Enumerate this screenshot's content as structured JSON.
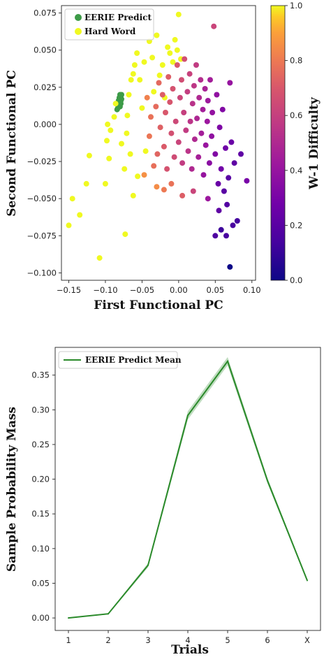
{
  "chart_data": [
    {
      "type": "scatter",
      "xlabel": "First Functional PC",
      "ylabel": "Second Functional PC",
      "xlim": [
        -0.16,
        0.105
      ],
      "ylim": [
        -0.105,
        0.08
      ],
      "xticks": [
        -0.15,
        -0.1,
        -0.05,
        0.0,
        0.05,
        0.1
      ],
      "xtick_labels": [
        "−0.15",
        "−0.10",
        "−0.05",
        "0.00",
        "0.05",
        "0.10"
      ],
      "yticks": [
        0.075,
        0.05,
        0.025,
        0.0,
        -0.025,
        -0.05,
        -0.075,
        -0.1
      ],
      "ytick_labels": [
        "0.075",
        "0.050",
        "0.025",
        "0.000",
        "−0.025",
        "−0.050",
        "−0.075",
        "−0.100"
      ],
      "legend": {
        "placement": "top-left",
        "entries": [
          "EERIE Predict",
          "Hard Word"
        ]
      },
      "colorbar": {
        "label": "W-1 Difficulty",
        "colormap": "plasma",
        "range": [
          0.0,
          1.0
        ],
        "ticks": [
          "0.0",
          "0.2",
          "0.4",
          "0.6",
          "0.8",
          "1.0"
        ]
      },
      "series": [
        {
          "name": "EERIE Predict",
          "color": "#3d9b48",
          "points": [
            [
              -0.083,
              0.011
            ],
            [
              -0.082,
              0.013
            ],
            [
              -0.081,
              0.015
            ],
            [
              -0.08,
              0.017
            ],
            [
              -0.079,
              0.019
            ],
            [
              -0.078,
              0.02
            ],
            [
              -0.084,
              0.01
            ],
            [
              -0.082,
              0.016
            ],
            [
              -0.08,
              0.012
            ],
            [
              -0.079,
              0.014
            ],
            [
              -0.078,
              0.017
            ],
            [
              -0.081,
              0.018
            ],
            [
              -0.083,
              0.014
            ],
            [
              -0.08,
              0.02
            ],
            [
              -0.079,
              0.016
            ]
          ]
        },
        {
          "name": "Hard Word",
          "color": "#f0f921",
          "points": [
            [
              -0.15,
              -0.068
            ],
            [
              -0.145,
              -0.05
            ],
            [
              -0.135,
              -0.061
            ],
            [
              -0.126,
              -0.04
            ],
            [
              -0.122,
              -0.021
            ],
            [
              -0.108,
              -0.09
            ],
            [
              -0.1,
              -0.04
            ],
            [
              -0.098,
              -0.011
            ],
            [
              -0.097,
              0.0
            ],
            [
              -0.095,
              -0.023
            ],
            [
              -0.093,
              -0.004
            ],
            [
              -0.088,
              0.005
            ],
            [
              -0.086,
              0.014
            ],
            [
              -0.078,
              -0.013
            ],
            [
              -0.074,
              -0.03
            ],
            [
              -0.073,
              -0.074
            ],
            [
              -0.071,
              -0.006
            ],
            [
              -0.07,
              0.006
            ],
            [
              -0.068,
              0.02
            ],
            [
              -0.065,
              0.03
            ],
            [
              -0.062,
              0.034
            ],
            [
              -0.06,
              0.04
            ],
            [
              -0.057,
              0.048
            ],
            [
              -0.053,
              0.03
            ],
            [
              -0.05,
              0.011
            ],
            [
              -0.047,
              0.042
            ],
            [
              -0.045,
              -0.018
            ],
            [
              -0.04,
              0.056
            ],
            [
              -0.036,
              0.045
            ],
            [
              -0.034,
              0.022
            ],
            [
              -0.03,
              0.06
            ],
            [
              -0.026,
              0.033
            ],
            [
              -0.022,
              0.04
            ],
            [
              -0.019,
              0.018
            ],
            [
              -0.015,
              0.052
            ],
            [
              -0.012,
              0.048
            ],
            [
              -0.008,
              0.042
            ],
            [
              -0.005,
              0.057
            ],
            [
              -0.002,
              0.05
            ],
            [
              0.0,
              0.074
            ],
            [
              0.003,
              0.044
            ],
            [
              -0.066,
              -0.02
            ],
            [
              -0.062,
              -0.048
            ],
            [
              -0.056,
              -0.035
            ]
          ]
        },
        {
          "name": "",
          "points": [
            [
              -0.047,
              -0.034,
              0.86
            ],
            [
              -0.043,
              0.018,
              0.82
            ],
            [
              -0.04,
              -0.008,
              0.79
            ],
            [
              -0.038,
              0.005,
              0.78
            ],
            [
              -0.034,
              -0.028,
              0.77
            ],
            [
              -0.031,
              0.012,
              0.76
            ],
            [
              -0.029,
              -0.02,
              0.74
            ],
            [
              -0.027,
              0.028,
              0.75
            ],
            [
              -0.025,
              -0.002,
              0.73
            ],
            [
              -0.022,
              0.02,
              0.72
            ],
            [
              -0.02,
              -0.015,
              0.71
            ],
            [
              -0.018,
              0.008,
              0.7
            ],
            [
              -0.016,
              -0.03,
              0.68
            ],
            [
              -0.014,
              0.032,
              0.72
            ],
            [
              -0.012,
              0.015,
              0.69
            ],
            [
              -0.01,
              -0.006,
              0.67
            ],
            [
              -0.008,
              0.024,
              0.68
            ],
            [
              -0.006,
              -0.022,
              0.65
            ],
            [
              -0.004,
              0.002,
              0.64
            ],
            [
              -0.002,
              0.04,
              0.7
            ],
            [
              0.0,
              -0.012,
              0.62
            ],
            [
              0.002,
              0.018,
              0.63
            ],
            [
              0.004,
              0.03,
              0.66
            ],
            [
              0.005,
              -0.026,
              0.58
            ],
            [
              0.007,
              0.008,
              0.6
            ],
            [
              0.008,
              0.044,
              0.67
            ],
            [
              0.01,
              -0.004,
              0.58
            ],
            [
              0.012,
              0.022,
              0.59
            ],
            [
              0.013,
              -0.018,
              0.55
            ],
            [
              0.015,
              0.034,
              0.61
            ],
            [
              0.016,
              0.002,
              0.55
            ],
            [
              0.018,
              -0.03,
              0.5
            ],
            [
              0.019,
              0.014,
              0.54
            ],
            [
              0.021,
              0.026,
              0.56
            ],
            [
              0.022,
              -0.01,
              0.5
            ],
            [
              0.024,
              0.04,
              0.58
            ],
            [
              0.025,
              0.004,
              0.49
            ],
            [
              0.027,
              -0.022,
              0.46
            ],
            [
              0.028,
              0.018,
              0.5
            ],
            [
              0.03,
              0.03,
              0.52
            ],
            [
              0.031,
              -0.006,
              0.45
            ],
            [
              0.033,
              0.01,
              0.45
            ],
            [
              0.034,
              -0.034,
              0.4
            ],
            [
              0.036,
              0.024,
              0.47
            ],
            [
              0.037,
              -0.014,
              0.41
            ],
            [
              0.039,
              0.002,
              0.42
            ],
            [
              0.04,
              0.016,
              0.43
            ],
            [
              0.042,
              -0.026,
              0.36
            ],
            [
              0.043,
              0.03,
              0.45
            ],
            [
              0.045,
              -0.008,
              0.38
            ],
            [
              0.046,
              0.008,
              0.39
            ],
            [
              0.048,
              0.066,
              0.62
            ],
            [
              0.05,
              -0.02,
              0.33
            ],
            [
              0.052,
              0.02,
              0.38
            ],
            [
              0.054,
              -0.04,
              0.25
            ],
            [
              0.056,
              -0.002,
              0.32
            ],
            [
              0.058,
              -0.03,
              0.28
            ],
            [
              0.06,
              0.01,
              0.33
            ],
            [
              0.062,
              -0.045,
              0.2
            ],
            [
              0.064,
              -0.016,
              0.27
            ],
            [
              0.066,
              -0.054,
              0.18
            ],
            [
              0.068,
              -0.036,
              0.2
            ],
            [
              0.07,
              0.028,
              0.4
            ],
            [
              0.072,
              -0.012,
              0.25
            ],
            [
              0.074,
              -0.068,
              0.15
            ],
            [
              0.076,
              -0.026,
              0.22
            ],
            [
              0.08,
              -0.065,
              0.14
            ],
            [
              0.085,
              -0.02,
              0.22
            ],
            [
              0.093,
              -0.038,
              0.3
            ],
            [
              0.058,
              -0.071,
              0.12
            ],
            [
              0.07,
              -0.096,
              0.0
            ],
            [
              -0.03,
              -0.042,
              0.85
            ],
            [
              -0.02,
              -0.044,
              0.8
            ],
            [
              -0.01,
              -0.04,
              0.78
            ],
            [
              0.005,
              -0.048,
              0.72
            ],
            [
              0.02,
              -0.045,
              0.62
            ],
            [
              0.04,
              -0.05,
              0.42
            ],
            [
              0.055,
              -0.058,
              0.22
            ],
            [
              0.065,
              -0.075,
              0.15
            ],
            [
              0.05,
              -0.075,
              0.17
            ]
          ]
        }
      ]
    },
    {
      "type": "line",
      "xlabel": "Trials",
      "ylabel": "Sample Probability Mass",
      "categories": [
        "1",
        "2",
        "3",
        "4",
        "5",
        "6",
        "X"
      ],
      "ylim": [
        -0.018,
        0.39
      ],
      "yticks": [
        "0.00",
        "0.05",
        "0.10",
        "0.15",
        "0.20",
        "0.25",
        "0.30",
        "0.35"
      ],
      "legend": {
        "placement": "top-left",
        "entries": [
          "EERIE Predict Mean"
        ]
      },
      "series": [
        {
          "name": "EERIE Predict Mean",
          "color": "#2a8a2a",
          "values": [
            0.0,
            0.006,
            0.076,
            0.292,
            0.37,
            0.198,
            0.054
          ],
          "band": [
            0.0,
            0.001,
            0.003,
            0.006,
            0.006,
            0.004,
            0.002
          ]
        }
      ]
    }
  ]
}
